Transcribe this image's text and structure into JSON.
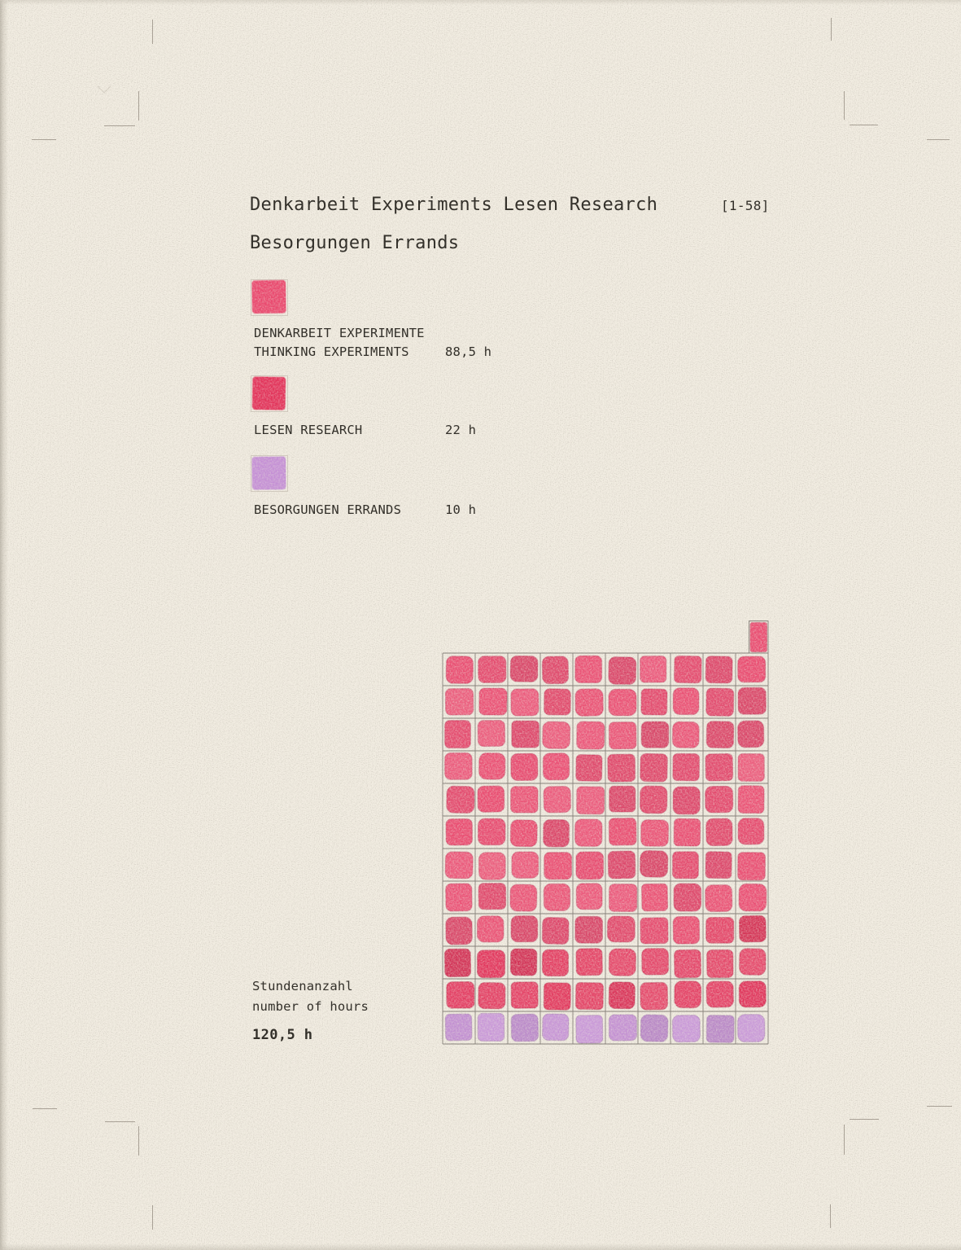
{
  "header": {
    "title": "Denkarbeit Experiments Lesen Research",
    "index_tag": "[1-58]",
    "subtitle": "Besorgungen Errands"
  },
  "legend": {
    "items": [
      {
        "label_line1": "DENKARBEIT EXPERIMENTE",
        "label_line2": "THINKING EXPERIMENTS",
        "value": "88,5 h",
        "color": "#e9476d"
      },
      {
        "label_line1": "LESEN RESEARCH",
        "value": "22 h",
        "color": "#e23259"
      },
      {
        "label_line1": "BESORGUNGEN ERRANDS",
        "value": "10 h",
        "color": "#c48fd5"
      }
    ]
  },
  "footer": {
    "label_line1": "Stundenanzahl",
    "label_line2": "number of hours",
    "total": "120,5 h"
  },
  "chart_data": {
    "type": "waffle",
    "title": "Denkarbeit Experiments Lesen Research — Besorgungen Errands [1-58]",
    "unit": "1 square = 1 hour",
    "columns": 10,
    "rows": 12,
    "total_hours": 120.5,
    "total_label": "120,5 h",
    "series": [
      {
        "name": "Denkarbeit Experimente / Thinking Experiments",
        "hours": 88.5,
        "full_squares": 88,
        "half_squares": 1,
        "color": "#e9476d"
      },
      {
        "name": "Lesen Research",
        "hours": 22,
        "full_squares": 22,
        "half_squares": 0,
        "color": "#e23259"
      },
      {
        "name": "Besorgungen Errands",
        "hours": 10,
        "full_squares": 10,
        "half_squares": 0,
        "color": "#c48fd5"
      }
    ],
    "layout": {
      "fill_order": "left-to-right, top-to-bottom",
      "half_square_position": "half-width square above the top-right corner of the grid",
      "bottom_row": "10 purple errands squares",
      "grid_line_color": "#6e6862",
      "paper_color": "#f3eee3"
    }
  }
}
